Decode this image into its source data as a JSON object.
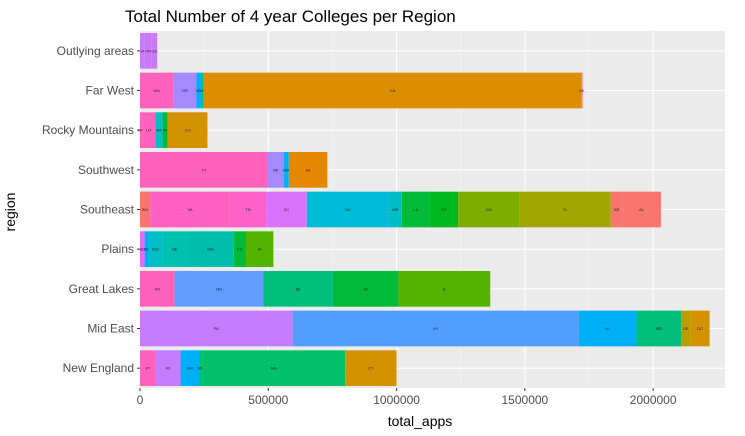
{
  "chart_data": {
    "type": "bar",
    "orientation": "horizontal",
    "stacked": true,
    "title": "Total Number of 4 year Colleges per Region",
    "xlabel": "total_apps",
    "ylabel": "region",
    "xlim": [
      0,
      2280000
    ],
    "xticks": [
      0,
      500000,
      1000000,
      1500000,
      2000000
    ],
    "xtick_labels": [
      "0",
      "500000",
      "1000000",
      "1500000",
      "2000000"
    ],
    "grid": true,
    "legend": "none",
    "panel_background": "#ebebeb",
    "categories": [
      "New England",
      "Mid East",
      "Great Lakes",
      "Plains",
      "Southeast",
      "Southwest",
      "Rocky Mountains",
      "Far West",
      "Outlying areas"
    ],
    "bars": [
      {
        "region": "New England",
        "segments": [
          {
            "label": "VT",
            "value": 60000,
            "color": "#FF62BC"
          },
          {
            "label": "RI",
            "value": 98000,
            "color": "#C77CFF"
          },
          {
            "label": "NH",
            "value": 72000,
            "color": "#00B0F6"
          },
          {
            "label": "ME",
            "value": 12000,
            "color": "#00BF7D"
          },
          {
            "label": "MA",
            "value": 558000,
            "color": "#00C06A"
          },
          {
            "label": "CT",
            "value": 200000,
            "color": "#D39200"
          }
        ]
      },
      {
        "region": "Mid East",
        "segments": [
          {
            "label": "PA",
            "value": 595000,
            "color": "#C77CFF"
          },
          {
            "label": "NY",
            "value": 1115000,
            "color": "#529EFF"
          },
          {
            "label": "NJ",
            "value": 225000,
            "color": "#00B0F6"
          },
          {
            "label": "MD",
            "value": 175000,
            "color": "#00BF7D"
          },
          {
            "label": "DE",
            "value": 35000,
            "color": "#BB9D00"
          },
          {
            "label": "DC",
            "value": 75000,
            "color": "#D39200"
          }
        ]
      },
      {
        "region": "Great Lakes",
        "segments": [
          {
            "label": "WI",
            "value": 135000,
            "color": "#FF62BC"
          },
          {
            "label": "OH",
            "value": 345000,
            "color": "#619CFF"
          },
          {
            "label": "MI",
            "value": 272000,
            "color": "#00BF7D"
          },
          {
            "label": "IN",
            "value": 255000,
            "color": "#00BA38"
          },
          {
            "label": "IL",
            "value": 358000,
            "color": "#53B400"
          }
        ]
      },
      {
        "region": "Plains",
        "segments": [
          {
            "label": "SD",
            "value": 18000,
            "color": "#E76BF3"
          },
          {
            "label": "ND",
            "value": 15000,
            "color": "#00A9FF"
          },
          {
            "label": "MO",
            "value": 55000,
            "color": "#00BFC4"
          },
          {
            "label": "NE",
            "value": 95000,
            "color": "#00C0AF"
          },
          {
            "label": "MN",
            "value": 182000,
            "color": "#00BFAA"
          },
          {
            "label": "KS",
            "value": 48000,
            "color": "#00BA38"
          },
          {
            "label": "IA",
            "value": 107000,
            "color": "#53B400"
          }
        ]
      },
      {
        "region": "Southeast",
        "segments": [
          {
            "label": "WV",
            "value": 40000,
            "color": "#F8766D"
          },
          {
            "label": "VA",
            "value": 310000,
            "color": "#FF61C3"
          },
          {
            "label": "TN",
            "value": 142000,
            "color": "#FF61C9"
          },
          {
            "label": "SC",
            "value": 158000,
            "color": "#DB72FB"
          },
          {
            "label": "NC",
            "value": 320000,
            "color": "#00BCD8"
          },
          {
            "label": "MS",
            "value": 50000,
            "color": "#00BFC4"
          },
          {
            "label": "LA",
            "value": 110000,
            "color": "#00BA38"
          },
          {
            "label": "KY",
            "value": 110000,
            "color": "#00B81F"
          },
          {
            "label": "GA",
            "value": 240000,
            "color": "#7CAE00"
          },
          {
            "label": "FL",
            "value": 355000,
            "color": "#A3A500"
          },
          {
            "label": "AR",
            "value": 45000,
            "color": "#F8766D"
          },
          {
            "label": "AL",
            "value": 150000,
            "color": "#F8766D"
          }
        ]
      },
      {
        "region": "Southwest",
        "segments": [
          {
            "label": "TX",
            "value": 497000,
            "color": "#FF62BC"
          },
          {
            "label": "OK",
            "value": 63000,
            "color": "#A58AFF"
          },
          {
            "label": "NM",
            "value": 20000,
            "color": "#00B0F6"
          },
          {
            "label": "AZ",
            "value": 150000,
            "color": "#E58700"
          }
        ]
      },
      {
        "region": "Rocky Mountains",
        "segments": [
          {
            "label": "WY",
            "value": 10000,
            "color": "#FF62BC"
          },
          {
            "label": "UT",
            "value": 50000,
            "color": "#FF62BC"
          },
          {
            "label": "MT",
            "value": 28000,
            "color": "#00BFC4"
          },
          {
            "label": "ID",
            "value": 20000,
            "color": "#00BA38"
          },
          {
            "label": "CO",
            "value": 155000,
            "color": "#D39200"
          }
        ]
      },
      {
        "region": "Far West",
        "segments": [
          {
            "label": "WA",
            "value": 130000,
            "color": "#FF62BC"
          },
          {
            "label": "OR",
            "value": 90000,
            "color": "#A58AFF"
          },
          {
            "label": "NV",
            "value": 18000,
            "color": "#00B0F6"
          },
          {
            "label": "HI",
            "value": 10000,
            "color": "#00C08B"
          },
          {
            "label": "CA",
            "value": 1472000,
            "color": "#DB8E00"
          },
          {
            "label": "AK",
            "value": 5000,
            "color": "#F8766D"
          }
        ]
      },
      {
        "region": "Outlying areas",
        "segments": [
          {
            "label": "VI",
            "value": 18000,
            "color": "#C77CFF"
          },
          {
            "label": "PR",
            "value": 28000,
            "color": "#CC79F6"
          },
          {
            "label": "GU",
            "value": 21000,
            "color": "#C77CFF"
          }
        ]
      }
    ]
  }
}
